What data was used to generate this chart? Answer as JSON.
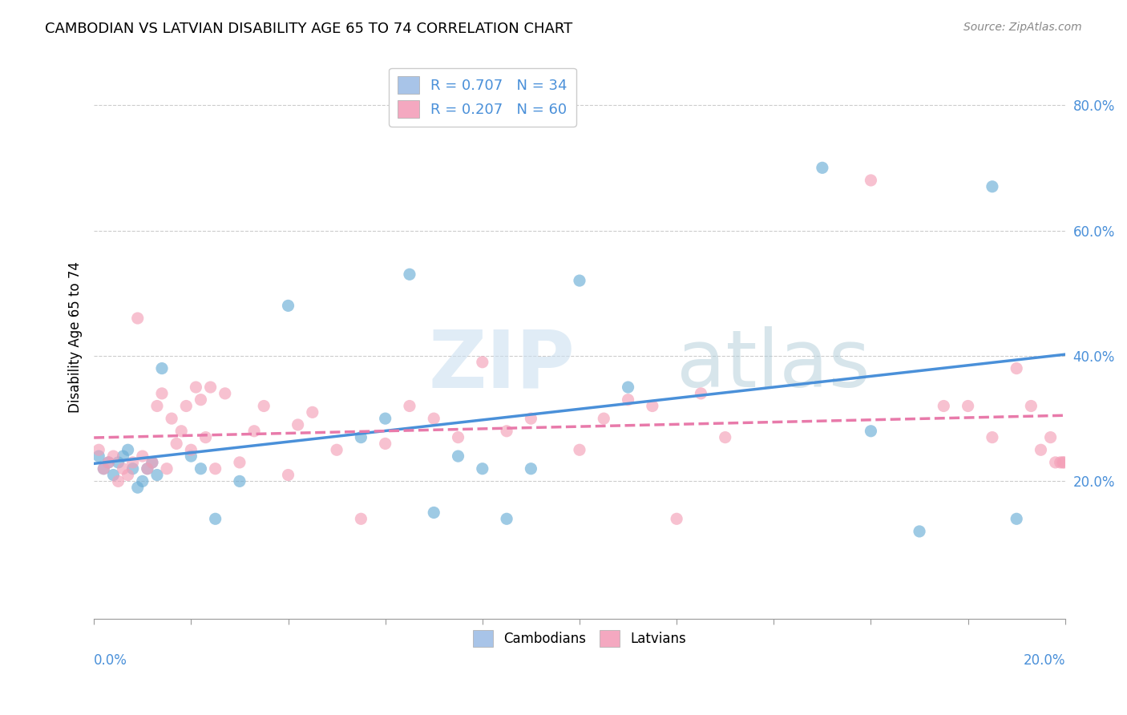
{
  "title": "CAMBODIAN VS LATVIAN DISABILITY AGE 65 TO 74 CORRELATION CHART",
  "source": "Source: ZipAtlas.com",
  "ylabel": "Disability Age 65 to 74",
  "xlim": [
    0.0,
    0.2
  ],
  "ylim": [
    -0.02,
    0.88
  ],
  "yticks": [
    0.2,
    0.4,
    0.6,
    0.8
  ],
  "ytick_labels": [
    "20.0%",
    "40.0%",
    "60.0%",
    "80.0%"
  ],
  "legend1_label": "R = 0.707   N = 34",
  "legend2_label": "R = 0.207   N = 60",
  "legend_color1": "#a8c4e8",
  "legend_color2": "#f4a8c0",
  "color_cambodian": "#6baed6",
  "color_latvian": "#f4a0b8",
  "line_color_cambodian": "#4a90d9",
  "line_color_latvian": "#e87aaa",
  "cambodian_x": [
    0.001,
    0.002,
    0.003,
    0.004,
    0.005,
    0.006,
    0.007,
    0.008,
    0.009,
    0.01,
    0.011,
    0.012,
    0.013,
    0.014,
    0.02,
    0.022,
    0.025,
    0.03,
    0.04,
    0.055,
    0.06,
    0.065,
    0.07,
    0.075,
    0.08,
    0.085,
    0.09,
    0.1,
    0.11,
    0.15,
    0.16,
    0.17,
    0.185,
    0.19
  ],
  "cambodian_y": [
    0.24,
    0.22,
    0.23,
    0.21,
    0.23,
    0.24,
    0.25,
    0.22,
    0.19,
    0.2,
    0.22,
    0.23,
    0.21,
    0.38,
    0.24,
    0.22,
    0.14,
    0.2,
    0.48,
    0.27,
    0.3,
    0.53,
    0.15,
    0.24,
    0.22,
    0.14,
    0.22,
    0.52,
    0.35,
    0.7,
    0.28,
    0.12,
    0.67,
    0.14
  ],
  "latvian_x": [
    0.001,
    0.002,
    0.003,
    0.004,
    0.005,
    0.006,
    0.007,
    0.008,
    0.009,
    0.01,
    0.011,
    0.012,
    0.013,
    0.014,
    0.015,
    0.016,
    0.017,
    0.018,
    0.019,
    0.02,
    0.021,
    0.022,
    0.023,
    0.024,
    0.025,
    0.027,
    0.03,
    0.033,
    0.035,
    0.04,
    0.042,
    0.045,
    0.05,
    0.055,
    0.06,
    0.065,
    0.07,
    0.075,
    0.08,
    0.085,
    0.09,
    0.1,
    0.105,
    0.11,
    0.115,
    0.12,
    0.125,
    0.13,
    0.16,
    0.175,
    0.18,
    0.185,
    0.19,
    0.193,
    0.195,
    0.197,
    0.198,
    0.199,
    0.1995,
    0.1998
  ],
  "latvian_y": [
    0.25,
    0.22,
    0.23,
    0.24,
    0.2,
    0.22,
    0.21,
    0.23,
    0.46,
    0.24,
    0.22,
    0.23,
    0.32,
    0.34,
    0.22,
    0.3,
    0.26,
    0.28,
    0.32,
    0.25,
    0.35,
    0.33,
    0.27,
    0.35,
    0.22,
    0.34,
    0.23,
    0.28,
    0.32,
    0.21,
    0.29,
    0.31,
    0.25,
    0.14,
    0.26,
    0.32,
    0.3,
    0.27,
    0.39,
    0.28,
    0.3,
    0.25,
    0.3,
    0.33,
    0.32,
    0.14,
    0.34,
    0.27,
    0.68,
    0.32,
    0.32,
    0.27,
    0.38,
    0.32,
    0.25,
    0.27,
    0.23,
    0.23,
    0.23,
    0.23
  ]
}
